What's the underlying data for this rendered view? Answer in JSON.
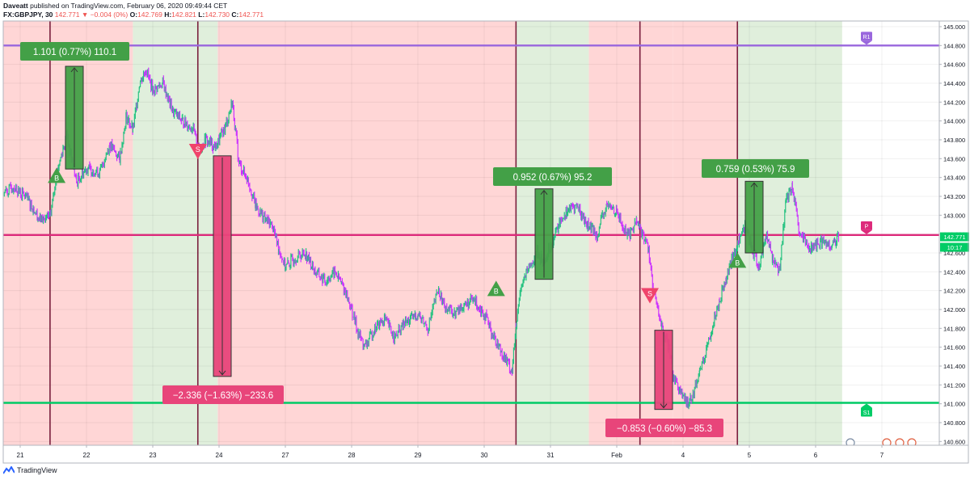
{
  "header": {
    "author": "Daveatt",
    "published_text": "published on TradingView.com, February 06, 2020 09:49:44 CET",
    "symbol": "FX:GBPJPY, 30",
    "last": "142.771",
    "change": "−0.004 (0%)",
    "open_label": "O:",
    "open": "142.769",
    "high_label": "H:",
    "high": "142.821",
    "low_label": "L:",
    "low": "142.730",
    "close_label": "C:",
    "close": "142.771"
  },
  "footer": {
    "brand": "TradingView"
  },
  "colors": {
    "up": "#26c281",
    "down": "#cc33ff",
    "zone_red": "#ffd6d6",
    "zone_green": "#e0efdc",
    "r1": "#9966dd",
    "pivot": "#dd2a7b",
    "s1": "#00cc66",
    "box_green": "#43a047",
    "box_red": "#e8457a"
  },
  "chart_data": {
    "type": "candlestick",
    "symbol": "FX:GBPJPY",
    "interval": "30",
    "ylim": [
      140.56,
      145.06
    ],
    "y_ticks": [
      "145.000",
      "144.800",
      "144.600",
      "144.400",
      "144.200",
      "144.000",
      "143.800",
      "143.600",
      "143.400",
      "143.200",
      "143.000",
      "142.800",
      "142.600",
      "142.400",
      "142.200",
      "142.000",
      "141.800",
      "141.600",
      "141.400",
      "141.200",
      "141.000",
      "140.800",
      "140.600"
    ],
    "x_ticks": [
      "21",
      "22",
      "23",
      "24",
      "27",
      "28",
      "29",
      "30",
      "31",
      "Feb",
      "4",
      "5",
      "6",
      "7"
    ],
    "price_tags": [
      {
        "label": "142.771",
        "value": 142.771,
        "color": "#00cc66"
      },
      {
        "label": "10:17",
        "value": 142.66,
        "color": "#00cc66"
      }
    ],
    "levels": [
      {
        "name": "R1",
        "value": 144.8,
        "color": "#9966dd"
      },
      {
        "name": "P",
        "value": 142.79,
        "color": "#dd2a7b"
      },
      {
        "name": "S1",
        "value": 141.01,
        "color": "#00cc66"
      }
    ],
    "signals": [
      {
        "label": "B",
        "side": "buy",
        "date_index": 0.55,
        "price": 143.42
      },
      {
        "label": "S",
        "side": "sell",
        "date_index": 2.68,
        "price": 143.68
      },
      {
        "label": "B",
        "side": "buy",
        "date_index": 7.18,
        "price": 142.22
      },
      {
        "label": "S",
        "side": "sell",
        "date_index": 9.5,
        "price": 142.15
      },
      {
        "label": "B",
        "side": "buy",
        "date_index": 10.82,
        "price": 142.52
      }
    ],
    "trade_boxes": [
      {
        "label": "1.101 (0.77%) 110.1",
        "side": "profit",
        "from_price": 143.49,
        "to_price": 144.58
      },
      {
        "label": "−2.336 (−1.63%) −233.6",
        "side": "loss",
        "from_price": 143.63,
        "to_price": 141.29
      },
      {
        "label": "0.952 (0.67%) 95.2",
        "side": "profit",
        "from_price": 142.32,
        "to_price": 143.28
      },
      {
        "label": "−0.853 (−0.60%) −85.3",
        "side": "loss",
        "from_price": 141.78,
        "to_price": 140.94
      },
      {
        "label": "0.759 (0.53%) 75.9",
        "side": "profit",
        "from_price": 142.6,
        "to_price": 143.36
      }
    ],
    "zones": [
      {
        "from": -0.3,
        "to": 1.7,
        "color": "red"
      },
      {
        "from": 1.7,
        "to": 2.98,
        "color": "green"
      },
      {
        "from": 2.98,
        "to": 7.48,
        "color": "red"
      },
      {
        "from": 7.48,
        "to": 8.58,
        "color": "green"
      },
      {
        "from": 8.58,
        "to": 9.85,
        "color": "red"
      },
      {
        "from": 9.85,
        "to": 10.82,
        "color": "red"
      },
      {
        "from": 10.82,
        "to": 12.4,
        "color": "green"
      }
    ],
    "path": [
      [
        -0.3,
        143.22
      ],
      [
        -0.1,
        143.3
      ],
      [
        0.1,
        143.18
      ],
      [
        0.3,
        142.95
      ],
      [
        0.45,
        142.98
      ],
      [
        0.55,
        143.45
      ],
      [
        0.7,
        143.85
      ],
      [
        0.85,
        143.35
      ],
      [
        1.0,
        143.5
      ],
      [
        1.2,
        143.45
      ],
      [
        1.35,
        143.75
      ],
      [
        1.5,
        143.6
      ],
      [
        1.6,
        144.05
      ],
      [
        1.7,
        143.9
      ],
      [
        1.8,
        144.4
      ],
      [
        1.9,
        144.55
      ],
      [
        2.0,
        144.32
      ],
      [
        2.15,
        144.4
      ],
      [
        2.3,
        144.1
      ],
      [
        2.45,
        144.0
      ],
      [
        2.6,
        143.92
      ],
      [
        2.7,
        143.7
      ],
      [
        2.8,
        143.8
      ],
      [
        2.95,
        143.72
      ],
      [
        3.1,
        143.95
      ],
      [
        3.2,
        144.2
      ],
      [
        3.3,
        143.55
      ],
      [
        3.45,
        143.35
      ],
      [
        3.55,
        143.1
      ],
      [
        3.7,
        142.95
      ],
      [
        3.8,
        142.9
      ],
      [
        3.9,
        142.65
      ],
      [
        4.0,
        142.45
      ],
      [
        4.15,
        142.55
      ],
      [
        4.3,
        142.6
      ],
      [
        4.45,
        142.4
      ],
      [
        4.6,
        142.3
      ],
      [
        4.75,
        142.4
      ],
      [
        4.9,
        142.2
      ],
      [
        5.0,
        142.0
      ],
      [
        5.1,
        141.75
      ],
      [
        5.2,
        141.6
      ],
      [
        5.35,
        141.8
      ],
      [
        5.5,
        141.9
      ],
      [
        5.65,
        141.7
      ],
      [
        5.8,
        141.85
      ],
      [
        6.0,
        141.95
      ],
      [
        6.15,
        141.8
      ],
      [
        6.3,
        142.2
      ],
      [
        6.4,
        142.05
      ],
      [
        6.55,
        141.95
      ],
      [
        6.7,
        142.05
      ],
      [
        6.85,
        142.1
      ],
      [
        7.0,
        141.95
      ],
      [
        7.15,
        141.7
      ],
      [
        7.3,
        141.5
      ],
      [
        7.42,
        141.35
      ],
      [
        7.48,
        141.8
      ],
      [
        7.55,
        142.25
      ],
      [
        7.65,
        142.4
      ],
      [
        7.8,
        142.6
      ],
      [
        7.9,
        142.5
      ],
      [
        8.05,
        142.75
      ],
      [
        8.15,
        142.95
      ],
      [
        8.25,
        143.05
      ],
      [
        8.4,
        143.1
      ],
      [
        8.55,
        142.9
      ],
      [
        8.7,
        142.8
      ],
      [
        8.85,
        143.1
      ],
      [
        9.0,
        143.05
      ],
      [
        9.1,
        142.85
      ],
      [
        9.2,
        142.8
      ],
      [
        9.3,
        142.95
      ],
      [
        9.4,
        142.78
      ],
      [
        9.48,
        142.65
      ],
      [
        9.55,
        142.2
      ],
      [
        9.62,
        142.0
      ],
      [
        9.7,
        141.75
      ],
      [
        9.78,
        141.6
      ],
      [
        9.85,
        141.3
      ],
      [
        9.95,
        141.15
      ],
      [
        10.05,
        141.0
      ],
      [
        10.15,
        141.1
      ],
      [
        10.25,
        141.35
      ],
      [
        10.35,
        141.55
      ],
      [
        10.45,
        141.85
      ],
      [
        10.55,
        142.1
      ],
      [
        10.65,
        142.35
      ],
      [
        10.75,
        142.55
      ],
      [
        10.85,
        142.75
      ],
      [
        10.95,
        142.9
      ],
      [
        11.05,
        142.6
      ],
      [
        11.15,
        142.45
      ],
      [
        11.25,
        142.8
      ],
      [
        11.35,
        142.55
      ],
      [
        11.45,
        142.4
      ],
      [
        11.55,
        143.15
      ],
      [
        11.65,
        143.3
      ],
      [
        11.75,
        142.8
      ],
      [
        11.85,
        142.7
      ],
      [
        11.95,
        142.65
      ],
      [
        12.1,
        142.72
      ],
      [
        12.25,
        142.68
      ],
      [
        12.35,
        142.77
      ]
    ]
  }
}
